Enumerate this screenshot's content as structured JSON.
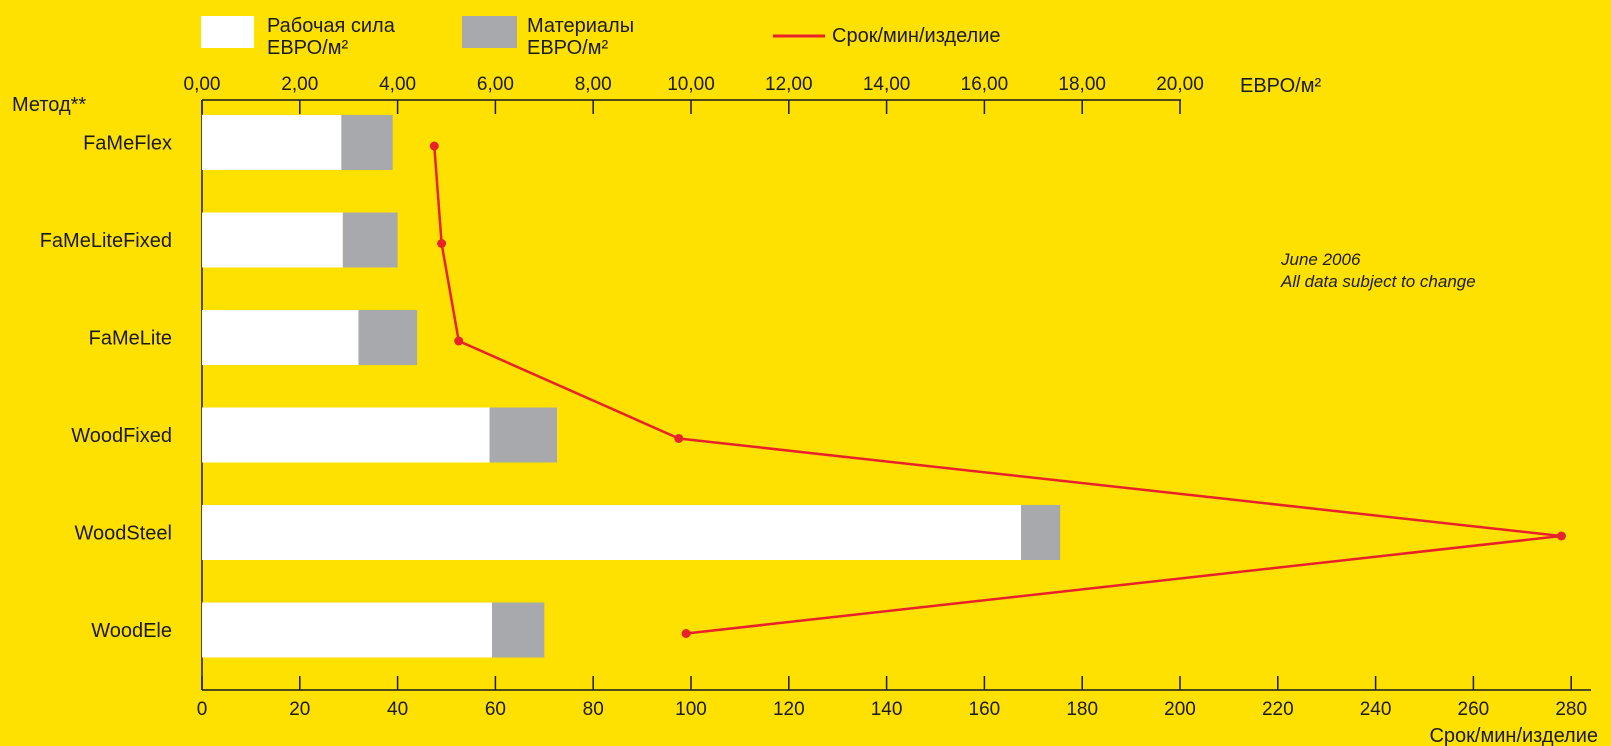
{
  "chart_data": {
    "type": "bar",
    "orientation": "horizontal",
    "stacked": true,
    "categories": [
      "FaMeFlex",
      "FaMeLiteFixed",
      "FaMeLite",
      "WoodFixed",
      "WoodSteel",
      "WoodEle"
    ],
    "category_axis_label": "Метод**",
    "series": [
      {
        "name_line1": "Рабочая сила",
        "name_line2": "ЕВРО/м²",
        "color": "#ffffff",
        "values": [
          2.85,
          2.88,
          3.2,
          5.88,
          16.75,
          5.93
        ]
      },
      {
        "name_line1": "Материалы",
        "name_line2": "ЕВРО/м²",
        "color": "#a7a9ac",
        "values": [
          1.05,
          1.12,
          1.2,
          1.38,
          0.8,
          1.07
        ]
      }
    ],
    "line_series": {
      "name": "Срок/мин/изделие",
      "color": "#e8222a",
      "values": [
        47.5,
        49,
        52.5,
        97.5,
        278,
        99
      ]
    },
    "top_axis": {
      "label": "ЕВРО/м²",
      "range": [
        0,
        20
      ],
      "ticks": [
        "0,00",
        "2,00",
        "4,00",
        "6,00",
        "8,00",
        "10,00",
        "12,00",
        "14,00",
        "16,00",
        "18,00",
        "20,00"
      ]
    },
    "bottom_axis": {
      "label": "Срок/мин/изделие",
      "range": [
        0,
        280
      ],
      "ticks": [
        "0",
        "20",
        "40",
        "60",
        "80",
        "100",
        "120",
        "140",
        "160",
        "180",
        "200",
        "220",
        "240",
        "260",
        "280"
      ]
    },
    "annotation": {
      "line1": "June 2006",
      "line2": "All data subject to change"
    },
    "grid": false,
    "legend_position": "top-left"
  }
}
